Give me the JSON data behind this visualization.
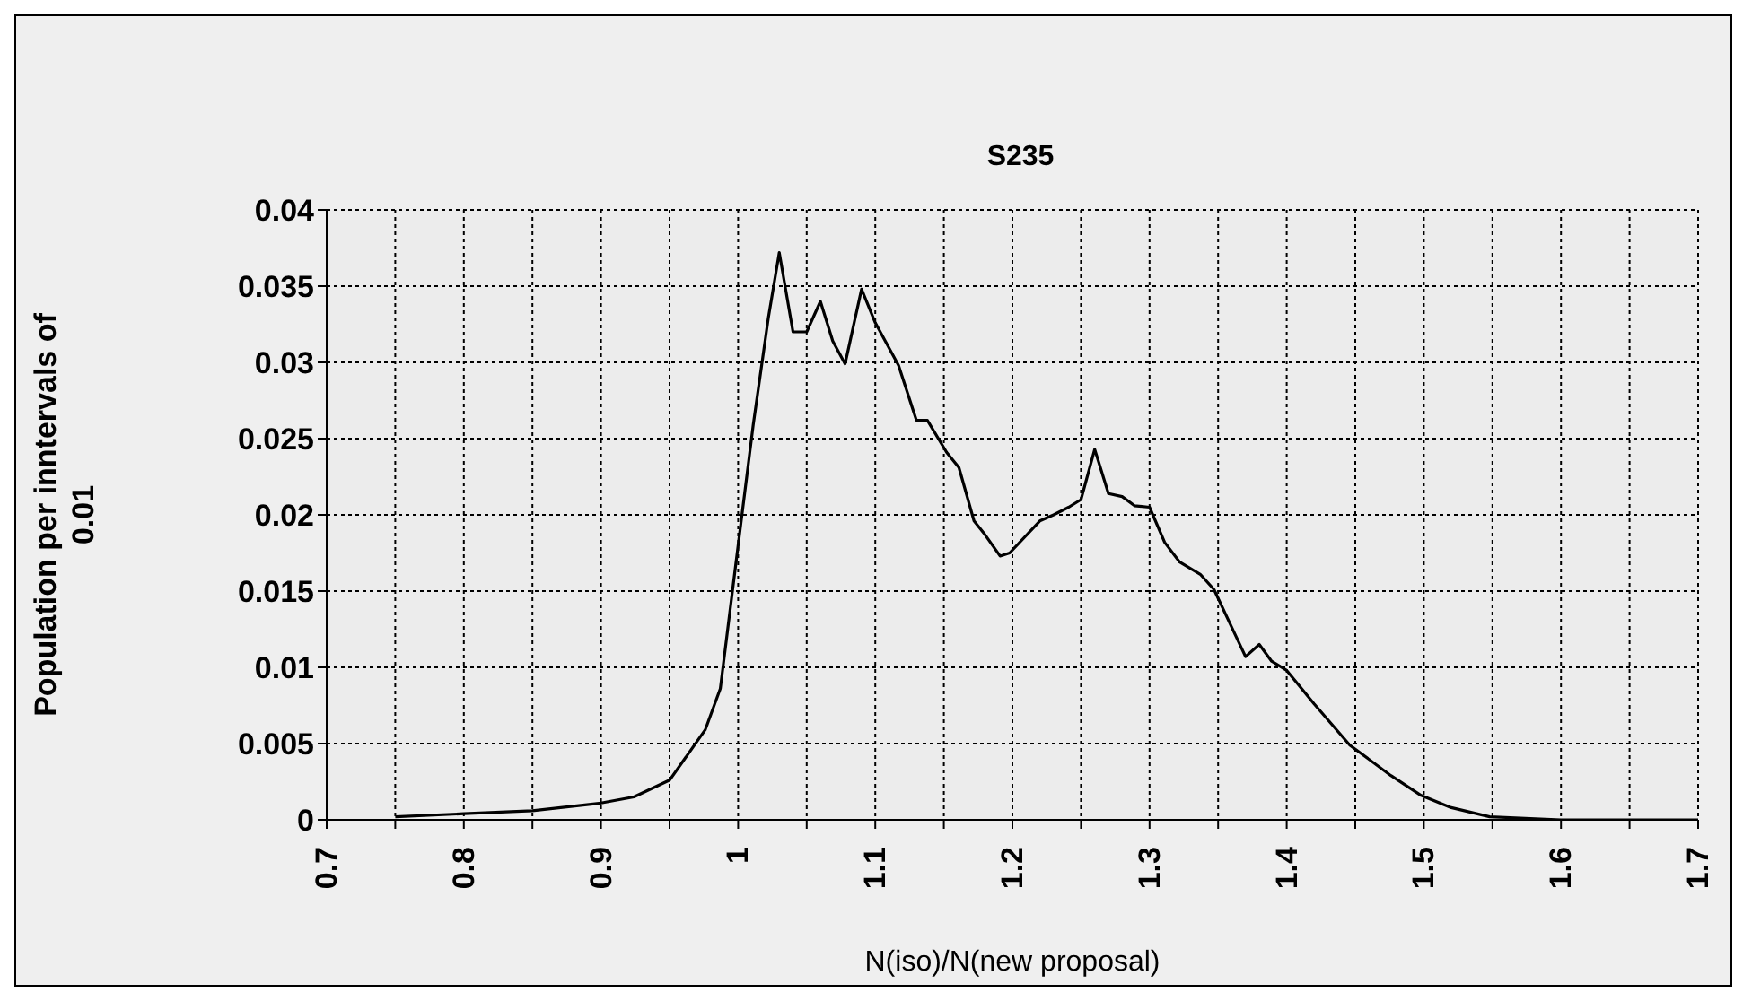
{
  "chart_data": {
    "type": "line",
    "title": "S235",
    "xlabel": "N(iso)/N(new proposal)",
    "ylabel": "Population per inntervals of 0.01",
    "xlim": [
      0.7,
      1.7
    ],
    "xticks": [
      0.7,
      {
        "value": 0.75,
        "label": null
      },
      0.8,
      {
        "value": 0.85,
        "label": null
      },
      0.9,
      {
        "value": 0.95,
        "label": null
      },
      1,
      {
        "value": 1.05,
        "label": null
      },
      1.1,
      {
        "value": 1.15,
        "label": null
      },
      1.2,
      {
        "value": 1.25,
        "label": null
      },
      1.3,
      {
        "value": 1.35,
        "label": null
      },
      1.4,
      {
        "value": 1.45,
        "label": null
      },
      1.5,
      {
        "value": 1.55,
        "label": null
      },
      1.6,
      {
        "value": 1.65,
        "label": null
      },
      1.7
    ],
    "ylim": [
      0,
      0.04
    ],
    "yticks": [
      0,
      0.005,
      0.01,
      0.015,
      0.02,
      0.025,
      0.03,
      0.035,
      0.04
    ],
    "grid": true,
    "marker": "none",
    "line_style": "solid",
    "x": [
      0.75,
      0.8,
      0.85,
      0.9,
      0.924,
      0.95,
      0.976,
      0.987,
      1.0,
      1.011,
      1.022,
      1.03,
      1.04,
      1.05,
      1.06,
      1.069,
      1.078,
      1.09,
      1.1,
      1.117,
      1.13,
      1.138,
      1.152,
      1.161,
      1.172,
      1.18,
      1.191,
      1.198,
      1.22,
      1.23,
      1.241,
      1.25,
      1.26,
      1.27,
      1.28,
      1.289,
      1.3,
      1.311,
      1.322,
      1.337,
      1.347,
      1.359,
      1.37,
      1.38,
      1.389,
      1.4,
      1.42,
      1.446,
      1.476,
      1.498,
      1.52,
      1.548,
      1.6,
      1.7
    ],
    "series": [
      {
        "color": "#000000",
        "values": [
          0.0002,
          0.0004,
          0.0006,
          0.0011,
          0.0015,
          0.0026,
          0.0059,
          0.0086,
          0.018,
          0.0259,
          0.0329,
          0.0372,
          0.032,
          0.032,
          0.034,
          0.0314,
          0.0299,
          0.0348,
          0.0326,
          0.0298,
          0.0262,
          0.0262,
          0.0241,
          0.0231,
          0.0196,
          0.0187,
          0.0173,
          0.0175,
          0.0196,
          0.02,
          0.0205,
          0.021,
          0.0243,
          0.0214,
          0.0212,
          0.0206,
          0.0205,
          0.0182,
          0.0169,
          0.0161,
          0.0151,
          0.0128,
          0.0107,
          0.0115,
          0.0104,
          0.0098,
          0.0076,
          0.0049,
          0.0029,
          0.0016,
          0.0008,
          0.0002,
          0,
          0
        ]
      }
    ]
  }
}
